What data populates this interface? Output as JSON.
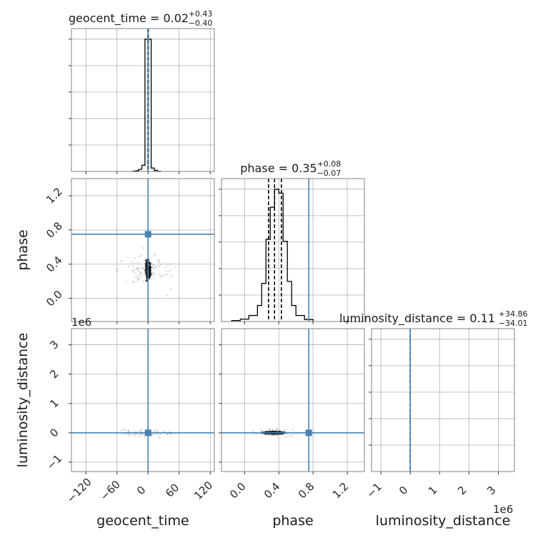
{
  "chart_data": {
    "type": "corner",
    "parameters": [
      "geocent_time",
      "phase",
      "luminosity_distance"
    ],
    "colors": {
      "truth": "#4682b4",
      "hist": "#000000",
      "grid": "#b0b0b0",
      "frame": "#808080"
    },
    "truths": {
      "geocent_time": 0.0,
      "phase": 0.75,
      "luminosity_distance": 0.0
    },
    "ranges": {
      "geocent_time": [
        -148,
        128
      ],
      "phase": [
        -0.27,
        1.4
      ],
      "luminosity_distance": [
        -1.32,
        3.55
      ]
    },
    "ticks": {
      "geocent_time": [
        -120,
        -60,
        0,
        60,
        120
      ],
      "phase": [
        0.0,
        0.4,
        0.8,
        1.2
      ],
      "luminosity_distance": [
        -1,
        0,
        1,
        2,
        3
      ]
    },
    "tick_labels": {
      "geocent_time": [
        "−120",
        "−60",
        "0",
        "60",
        "120"
      ],
      "phase": [
        "0.0",
        "0.4",
        "0.8",
        "1.2"
      ],
      "luminosity_distance": [
        "−1",
        "0",
        "1",
        "2",
        "3"
      ]
    },
    "offset_text": "1e6",
    "titles": [
      {
        "param": "geocent_time",
        "text": "geocent_time = 0.02",
        "upper": "+0.43",
        "lower": "−0.40"
      },
      {
        "param": "phase",
        "text": "phase = 0.35",
        "upper": "+0.08",
        "lower": "−0.07"
      },
      {
        "param": "luminosity_distance",
        "text": "luminosity_distance = 0.11",
        "upper": "+34.86",
        "lower": "−34.01"
      }
    ],
    "quantiles": {
      "geocent_time": [
        -0.38,
        0.02,
        0.45
      ],
      "phase": [
        0.28,
        0.35,
        0.43
      ],
      "luminosity_distance": [
        -3.4e-05,
        1e-07,
        3.5e-05
      ]
    },
    "histograms": {
      "geocent_time": {
        "edges": [
          -30,
          -24,
          -18,
          -12,
          -6,
          0,
          6,
          12,
          18,
          24
        ],
        "counts": [
          0.2,
          0.6,
          1.5,
          4.5,
          96,
          96,
          2.5,
          0.8,
          0.2
        ]
      },
      "phase": {
        "edges": [
          -0.15,
          -0.05,
          0.05,
          0.15,
          0.2,
          0.25,
          0.3,
          0.35,
          0.4,
          0.45,
          0.5,
          0.55,
          0.6,
          0.7,
          0.8
        ],
        "counts": [
          0.5,
          1.2,
          3,
          8,
          19,
          41,
          57,
          66,
          64,
          40,
          20,
          8,
          3,
          1
        ]
      },
      "luminosity_distance": {
        "edges": [
          -0.1,
          0.0,
          0.1
        ],
        "counts": [
          100,
          100
        ]
      }
    },
    "grid": true
  }
}
